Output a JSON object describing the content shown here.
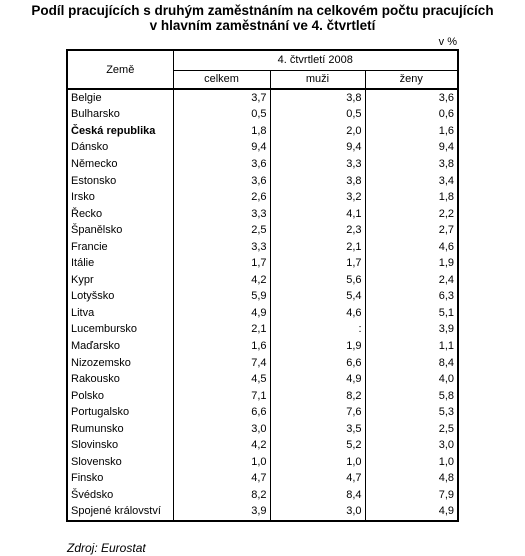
{
  "title": {
    "line1": "Podíl pracujících s druhým zaměstnáním na celkovém počtu pracujících",
    "line2": "v hlavním zaměstnání ve 4. čtvrtletí"
  },
  "unit": "v %",
  "table": {
    "country_header": "Země",
    "period_header": "4. čtvrtletí 2008",
    "sub_headers": [
      "celkem",
      "muži",
      "ženy"
    ],
    "rows": [
      {
        "country": "Belgie",
        "total": "3,7",
        "men": "3,8",
        "women": "3,6"
      },
      {
        "country": "Bulharsko",
        "total": "0,5",
        "men": "0,5",
        "women": "0,6"
      },
      {
        "country": "Česká republika",
        "total": "1,8",
        "men": "2,0",
        "women": "1,6",
        "bold": true
      },
      {
        "country": "Dánsko",
        "total": "9,4",
        "men": "9,4",
        "women": "9,4"
      },
      {
        "country": "Německo",
        "total": "3,6",
        "men": "3,3",
        "women": "3,8"
      },
      {
        "country": "Estonsko",
        "total": "3,6",
        "men": "3,8",
        "women": "3,4"
      },
      {
        "country": "Irsko",
        "total": "2,6",
        "men": "3,2",
        "women": "1,8"
      },
      {
        "country": "Řecko",
        "total": "3,3",
        "men": "4,1",
        "women": "2,2"
      },
      {
        "country": "Španělsko",
        "total": "2,5",
        "men": "2,3",
        "women": "2,7"
      },
      {
        "country": "Francie",
        "total": "3,3",
        "men": "2,1",
        "women": "4,6"
      },
      {
        "country": "Itálie",
        "total": "1,7",
        "men": "1,7",
        "women": "1,9"
      },
      {
        "country": "Kypr",
        "total": "4,2",
        "men": "5,6",
        "women": "2,4"
      },
      {
        "country": "Lotyšsko",
        "total": "5,9",
        "men": "5,4",
        "women": "6,3"
      },
      {
        "country": "Litva",
        "total": "4,9",
        "men": "4,6",
        "women": "5,1"
      },
      {
        "country": "Lucembursko",
        "total": "2,1",
        "men": ":",
        "women": "3,9"
      },
      {
        "country": "Maďarsko",
        "total": "1,6",
        "men": "1,9",
        "women": "1,1"
      },
      {
        "country": "Nizozemsko",
        "total": "7,4",
        "men": "6,6",
        "women": "8,4"
      },
      {
        "country": "Rakousko",
        "total": "4,5",
        "men": "4,9",
        "women": "4,0"
      },
      {
        "country": "Polsko",
        "total": "7,1",
        "men": "8,2",
        "women": "5,8"
      },
      {
        "country": "Portugalsko",
        "total": "6,6",
        "men": "7,6",
        "women": "5,3"
      },
      {
        "country": "Rumunsko",
        "total": "3,0",
        "men": "3,5",
        "women": "2,5"
      },
      {
        "country": "Slovinsko",
        "total": "4,2",
        "men": "5,2",
        "women": "3,0"
      },
      {
        "country": "Slovensko",
        "total": "1,0",
        "men": "1,0",
        "women": "1,0"
      },
      {
        "country": "Finsko",
        "total": "4,7",
        "men": "4,7",
        "women": "4,8"
      },
      {
        "country": "Švédsko",
        "total": "8,2",
        "men": "8,4",
        "women": "7,9"
      },
      {
        "country": "Spojené království",
        "total": "3,9",
        "men": "3,0",
        "women": "4,9"
      }
    ]
  },
  "source": "Zdroj: Eurostat"
}
